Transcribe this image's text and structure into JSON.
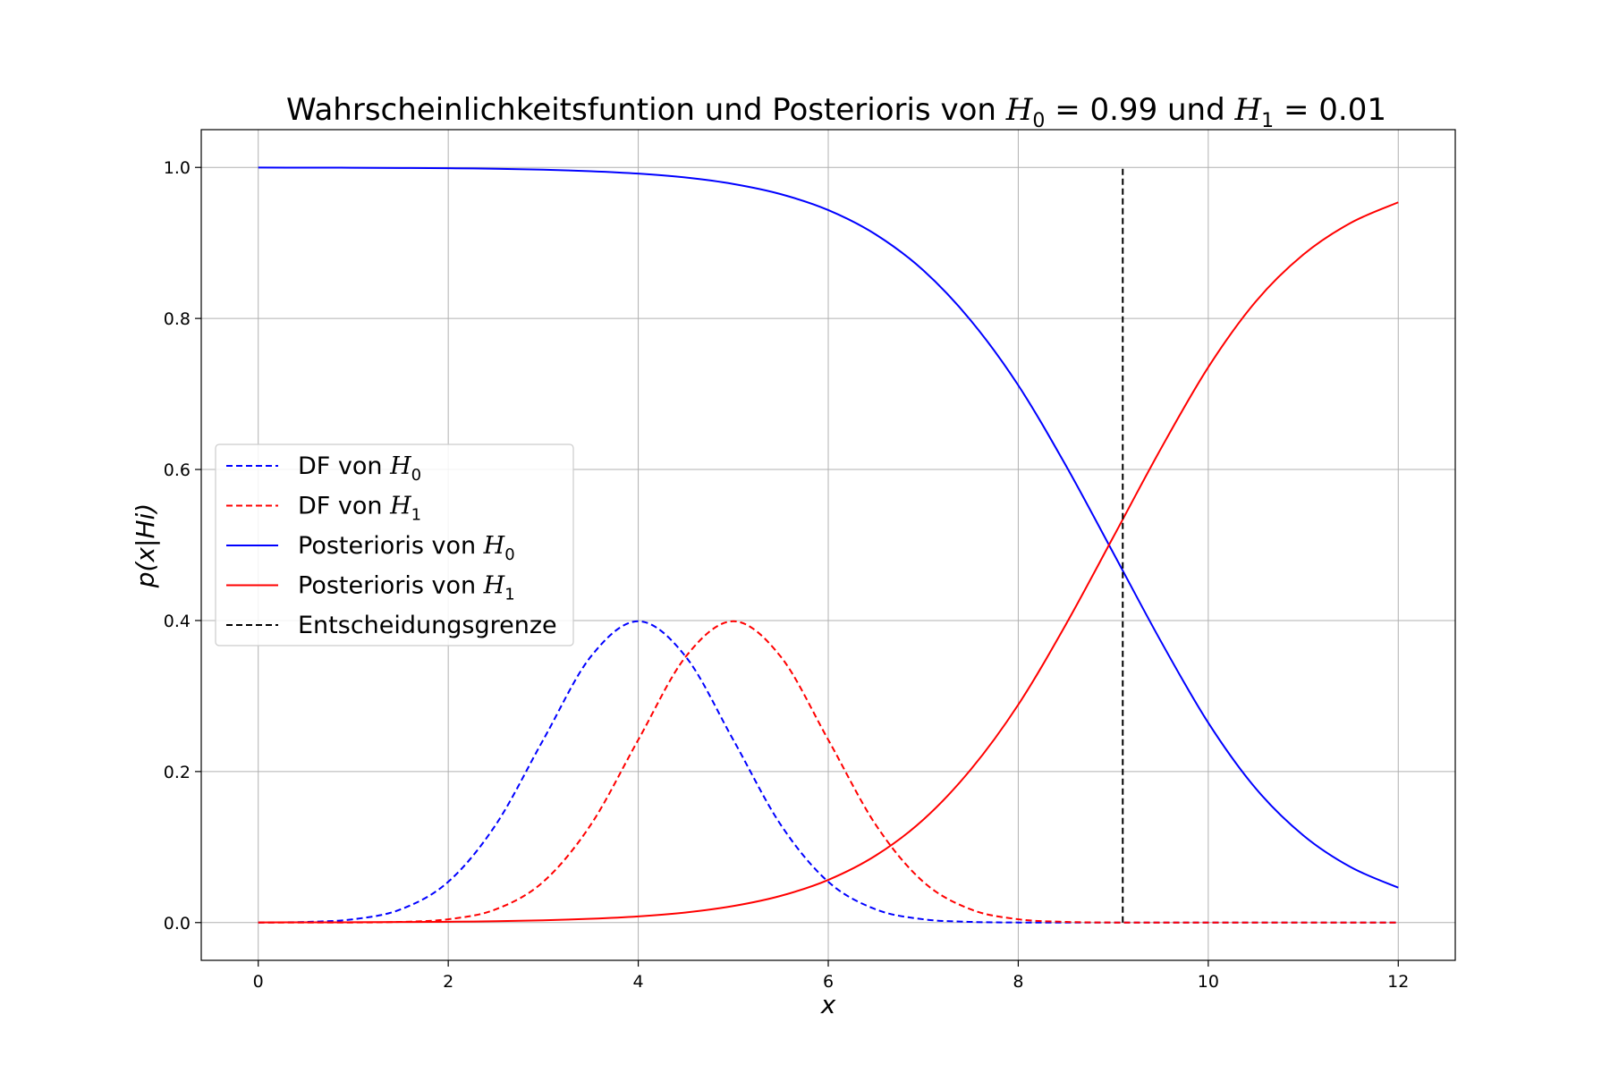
{
  "chart_data": {
    "type": "line",
    "title": "Wahrscheinlichkeitsfuntion und Posterioris von H0 = 0.99 und H1 = 0.01",
    "title_parts": {
      "prefix": "Wahrscheinlichkeitsfuntion und Posterioris von ",
      "h0_symbol": "H",
      "h0_sub": "0",
      "h0_value": " = 0.99",
      "middle": " und ",
      "h1_symbol": "H",
      "h1_sub": "1",
      "h1_value": " = 0.01"
    },
    "xlabel": "x",
    "ylabel": "p(x|Hi)",
    "xlim": [
      -0.6,
      12.6
    ],
    "ylim": [
      -0.05,
      1.05
    ],
    "x_ticks": [
      0,
      2,
      4,
      6,
      8,
      10,
      12
    ],
    "x_tick_labels": [
      "0",
      "2",
      "4",
      "6",
      "8",
      "10",
      "12"
    ],
    "y_ticks": [
      0.0,
      0.2,
      0.4,
      0.6,
      0.8,
      1.0
    ],
    "y_tick_labels": [
      "0.0",
      "0.2",
      "0.4",
      "0.6",
      "0.8",
      "1.0"
    ],
    "grid": true,
    "legend_position": "center-left",
    "x": [
      0,
      0.5,
      1,
      1.5,
      2,
      2.5,
      3,
      3.5,
      4,
      4.5,
      5,
      5.5,
      6,
      6.5,
      7,
      7.5,
      8,
      8.5,
      9,
      9.5,
      10,
      10.5,
      11,
      11.5,
      12
    ],
    "series": [
      {
        "name": "DF von H0",
        "label_symbol": "H",
        "label_sub": "0",
        "label_prefix": "DF von ",
        "color": "#0000ff",
        "style": "dashed",
        "values": [
          0.0001,
          0.0009,
          0.0044,
          0.0175,
          0.054,
          0.1295,
          0.242,
          0.3521,
          0.399,
          0.3521,
          0.242,
          0.1295,
          0.054,
          0.0175,
          0.0044,
          0.0009,
          0.0001,
          0.0,
          0.0,
          0.0,
          0.0,
          0.0,
          0.0,
          0.0,
          0.0
        ]
      },
      {
        "name": "DF von H1",
        "label_symbol": "H",
        "label_sub": "1",
        "label_prefix": "DF von ",
        "color": "#ff0000",
        "style": "dashed",
        "values": [
          0.0,
          0.0,
          0.0001,
          0.0009,
          0.0044,
          0.0175,
          0.054,
          0.1295,
          0.242,
          0.3521,
          0.399,
          0.3521,
          0.242,
          0.1295,
          0.054,
          0.0175,
          0.0044,
          0.0009,
          0.0001,
          0.0,
          0.0,
          0.0,
          0.0,
          0.0,
          0.0
        ]
      },
      {
        "name": "Posterioris von H0",
        "label_symbol": "H",
        "label_sub": "0",
        "label_prefix": "Posterioris von ",
        "color": "#0000ff",
        "style": "solid",
        "values": [
          0.9998,
          0.9997,
          0.9996,
          0.9993,
          0.9989,
          0.9982,
          0.997,
          0.995,
          0.9918,
          0.9866,
          0.9781,
          0.9646,
          0.9435,
          0.9112,
          0.8638,
          0.7974,
          0.7115,
          0.6055,
          0.4895,
          0.3728,
          0.2646,
          0.1776,
          0.1155,
          0.0734,
          0.0462
        ]
      },
      {
        "name": "Posterioris von H1",
        "label_symbol": "H",
        "label_sub": "1",
        "label_prefix": "Posterioris von ",
        "color": "#ff0000",
        "style": "solid",
        "values": [
          0.0002,
          0.0003,
          0.0004,
          0.0007,
          0.0011,
          0.0018,
          0.003,
          0.005,
          0.0082,
          0.0134,
          0.0219,
          0.0354,
          0.0565,
          0.0888,
          0.1362,
          0.2026,
          0.2885,
          0.3945,
          0.5105,
          0.6272,
          0.7354,
          0.8224,
          0.8845,
          0.9266,
          0.9538
        ]
      }
    ],
    "decision_boundary": {
      "name": "Entscheidungsgrenze",
      "x": 9.1,
      "y_range": [
        0.0,
        1.0
      ],
      "color": "#000000",
      "style": "dashed"
    }
  }
}
